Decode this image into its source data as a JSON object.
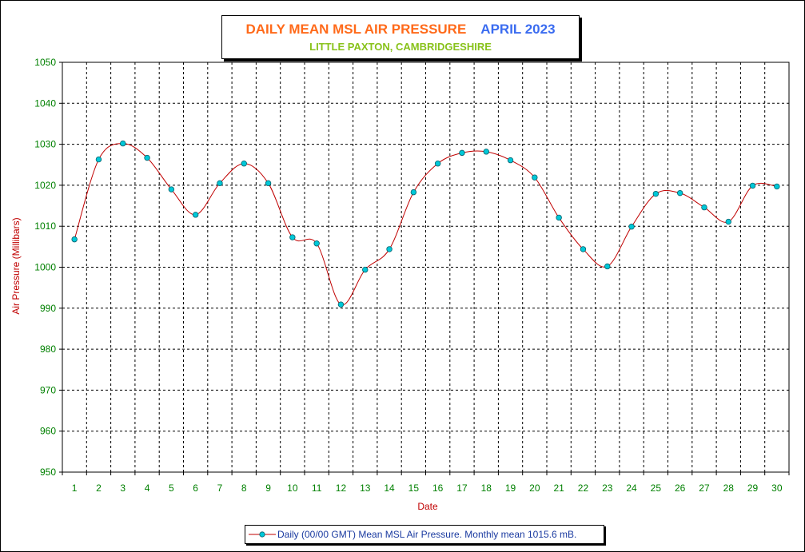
{
  "title": {
    "main": "DAILY MEAN MSL AIR PRESSURE",
    "period": "APRIL 2023",
    "subtitle": "LITTLE PAXTON, CAMBRIDGESHIRE"
  },
  "legend": {
    "label": "Daily (00/00 GMT) Mean MSL Air Pressure. Monthly mean 1015.6 mB."
  },
  "colors": {
    "line": "#c00000",
    "marker_fill": "#00c8d8",
    "marker_stroke": "#005f6a",
    "tick_label": "#008000",
    "axis_title": "#c00000",
    "grid": "#000000"
  },
  "chart_data": {
    "type": "line",
    "xlabel": "Date",
    "ylabel": "Air Pressure (Millibars)",
    "x": [
      1,
      2,
      3,
      4,
      5,
      6,
      7,
      8,
      9,
      10,
      11,
      12,
      13,
      14,
      15,
      16,
      17,
      18,
      19,
      20,
      21,
      22,
      23,
      24,
      25,
      26,
      27,
      28,
      29,
      30
    ],
    "x_tick_labels": [
      "1",
      "2",
      "3",
      "4",
      "5",
      "6",
      "7",
      "8",
      "9",
      "10",
      "11",
      "12",
      "13",
      "14",
      "15",
      "16",
      "17",
      "18",
      "19",
      "20",
      "21",
      "22",
      "23",
      "24",
      "25",
      "26",
      "27",
      "28",
      "29",
      "30"
    ],
    "ylim": [
      950,
      1050
    ],
    "y_ticks": [
      950,
      960,
      970,
      980,
      990,
      1000,
      1010,
      1020,
      1030,
      1040,
      1050
    ],
    "grid": true,
    "legend_position": "bottom-center",
    "series": [
      {
        "name": "Daily (00/00 GMT) Mean MSL Air Pressure. Monthly mean 1015.6 mB.",
        "values": [
          1006.8,
          1026.3,
          1030.2,
          1026.7,
          1019.0,
          1012.8,
          1020.5,
          1025.3,
          1020.5,
          1007.3,
          1005.8,
          990.9,
          999.4,
          1004.4,
          1018.3,
          1025.3,
          1027.9,
          1028.2,
          1026.1,
          1021.9,
          1012.1,
          1004.4,
          1000.2,
          1009.9,
          1017.9,
          1018.1,
          1014.6,
          1011.1,
          1019.9,
          1019.7
        ]
      }
    ]
  }
}
